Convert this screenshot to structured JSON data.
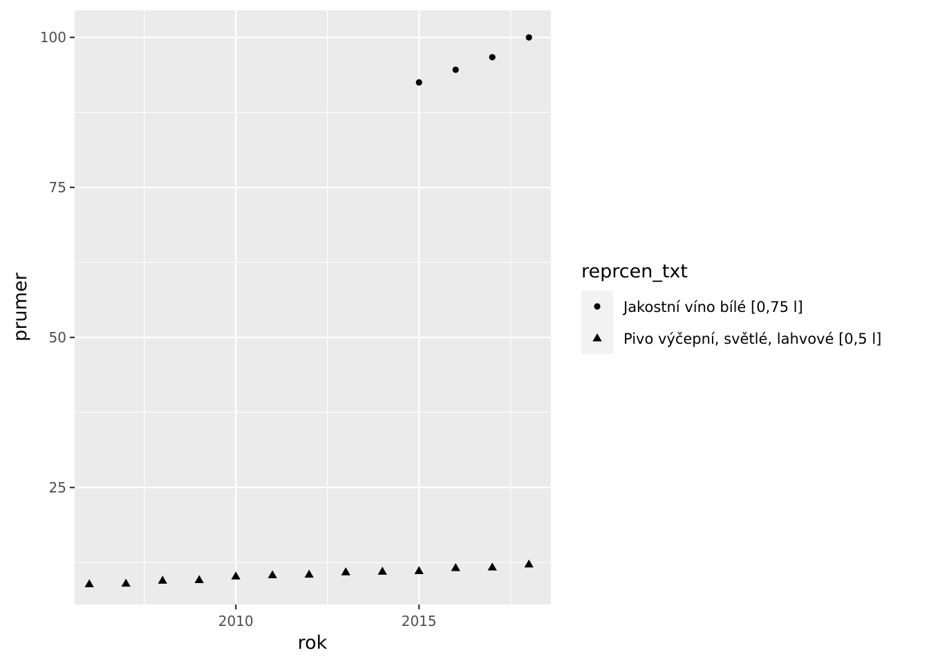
{
  "chart_data": {
    "type": "scatter",
    "xlabel": "rok",
    "ylabel": "prumer",
    "xlim": [
      2005.6,
      2018.6
    ],
    "ylim": [
      5.5,
      104.5
    ],
    "x_ticks": [
      2010,
      2015
    ],
    "y_ticks": [
      25,
      50,
      75,
      100
    ],
    "grid": true,
    "legend": {
      "title": "reprcen_txt",
      "position": "right"
    },
    "series": [
      {
        "name": "Jakostní víno bílé [0,75 l]",
        "shape": "circle",
        "x": [
          2015,
          2016,
          2017,
          2018
        ],
        "y": [
          92.5,
          94.6,
          96.7,
          100.0
        ]
      },
      {
        "name": "Pivo výčepní, světlé, lahvové [0,5 l]",
        "shape": "triangle",
        "x": [
          2006,
          2007,
          2008,
          2009,
          2010,
          2011,
          2012,
          2013,
          2014,
          2015,
          2016,
          2017,
          2018
        ],
        "y": [
          8.9,
          9.0,
          9.5,
          9.6,
          10.2,
          10.4,
          10.5,
          10.9,
          11.0,
          11.1,
          11.6,
          11.7,
          12.2
        ]
      }
    ]
  },
  "colors": {
    "panel_background": "#ebebeb",
    "grid_major": "#ffffff",
    "points": "#000000",
    "legend_key_background": "#f2f2f2"
  }
}
